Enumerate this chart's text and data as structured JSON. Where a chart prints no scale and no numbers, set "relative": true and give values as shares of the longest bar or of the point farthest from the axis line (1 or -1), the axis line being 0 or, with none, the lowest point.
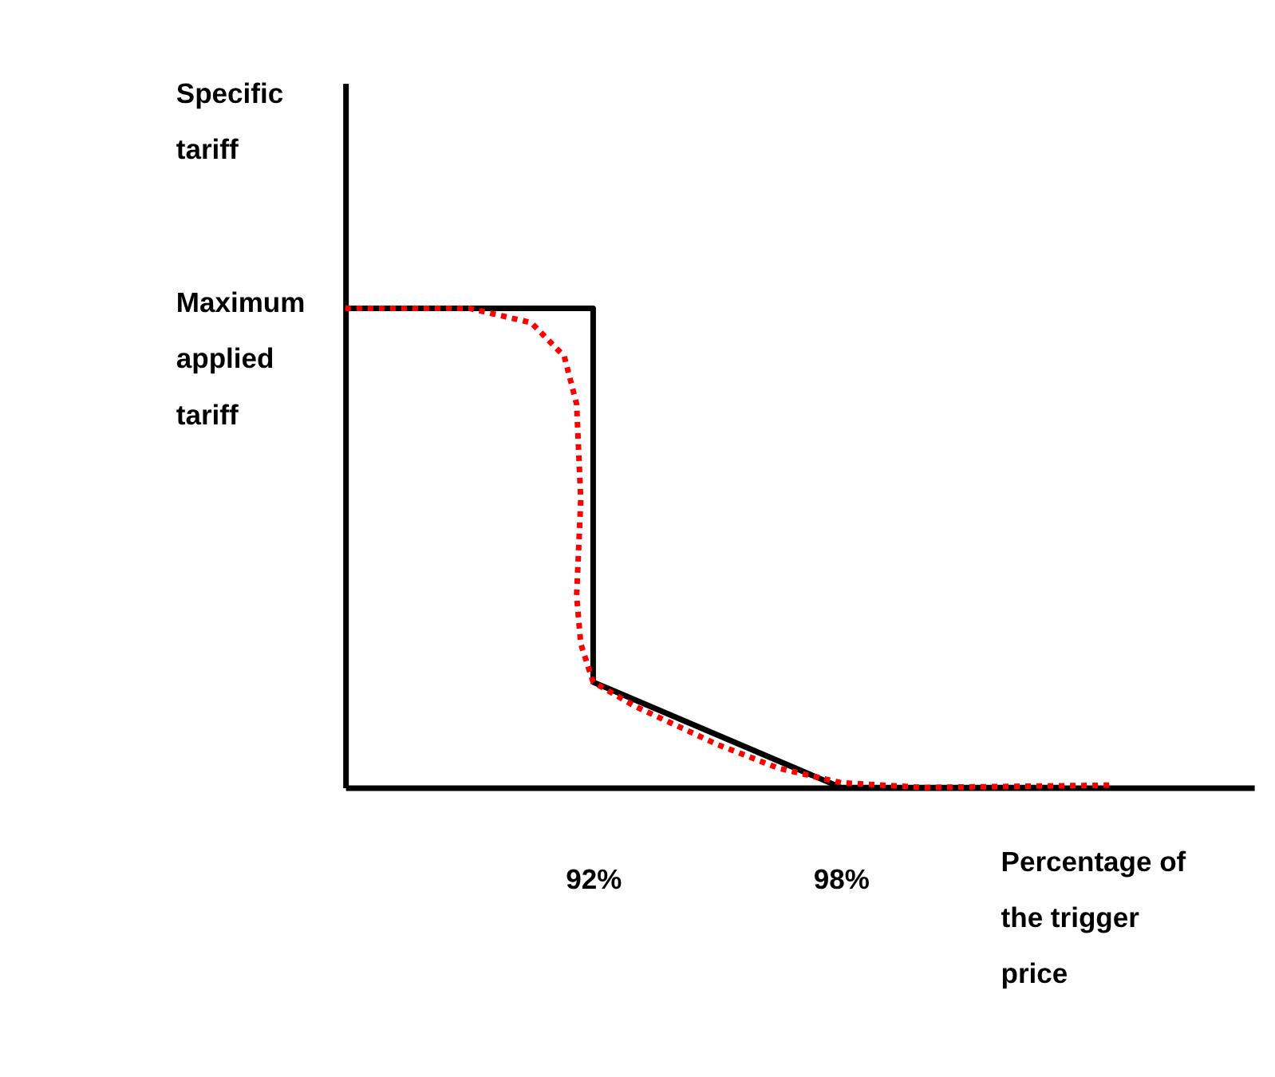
{
  "chart_data": {
    "type": "line",
    "relative": true,
    "xlabel": "Percentage of the trigger price",
    "xlim": [
      86,
      108
    ],
    "xticks": [
      {
        "value": 92,
        "label": "92%"
      },
      {
        "value": 98,
        "label": "98%"
      }
    ],
    "grid": false,
    "annotations": [
      "Specific tariff",
      "Maximum applied tariff"
    ],
    "series": [
      {
        "color": "#000000",
        "line_style": "solid",
        "x": [
          86,
          92,
          92,
          98,
          103.4
        ],
        "values": [
          1,
          1,
          0.22,
          0,
          0
        ]
      },
      {
        "color": "#ff0000",
        "line_style": "dotted",
        "x": [
          86,
          89,
          90.5,
          91.3,
          91.6,
          91.7,
          91.6,
          91.7,
          92,
          93,
          95,
          96.5,
          98,
          100,
          104.6
        ],
        "values": [
          1,
          1,
          0.97,
          0.9,
          0.8,
          0.6,
          0.4,
          0.3,
          0.22,
          0.17,
          0.09,
          0.04,
          0.01,
          0,
          0.005
        ]
      }
    ]
  }
}
